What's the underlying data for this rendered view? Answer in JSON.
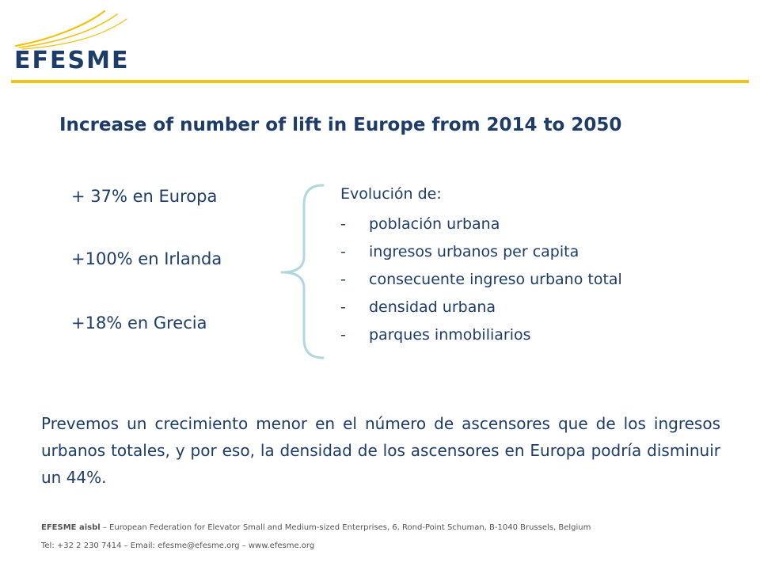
{
  "logo": {
    "text": "EFESME",
    "swoosh_color": "#F2C315",
    "text_color": "#1D3D68"
  },
  "colors": {
    "accent_rule": "#F2C315",
    "text_primary": "#1D3D68",
    "brace": "#B2D8DC",
    "footer_text": "#555555"
  },
  "title": "Increase of number of lift in Europe from 2014 to 2050",
  "stats": [
    "+ 37% en Europa",
    "+100% en Irlanda",
    "+18% en Grecia"
  ],
  "evolution": {
    "heading": "Evolución de:",
    "dash": "-",
    "items": [
      "población urbana",
      "ingresos urbanos per capita",
      "consecuente ingreso urbano total",
      "densidad urbana",
      "parques inmobiliarios"
    ]
  },
  "summary": "Prevemos un crecimiento menor en el número de ascensores que de los ingresos urbanos totales, y por eso, la densidad de los ascensores en Europa podría disminuir un 44%.",
  "footer": {
    "org_name": "EFESME aisbl",
    "org_details": " – European Federation for Elevator Small and Medium-sized Enterprises, 6, Rond-Point Schuman, B-1040 Brussels, Belgium",
    "contact": "Tel: +32 2 230 7414 – Email: efesme@efesme.org – www.efesme.org"
  }
}
